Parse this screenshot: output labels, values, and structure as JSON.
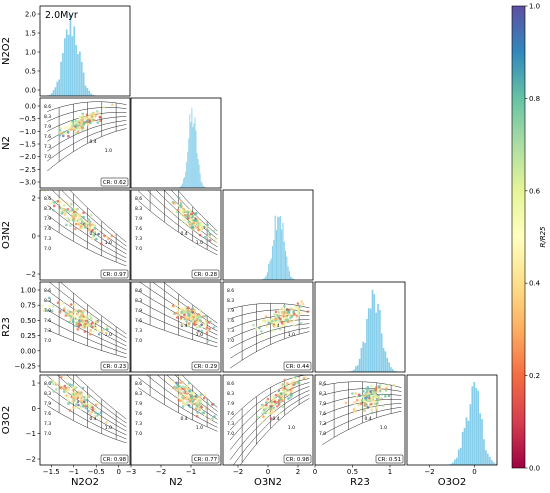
{
  "chart_data": {
    "type": "corner",
    "annotation": "2.0Myr",
    "variables": [
      "N2O2",
      "N2",
      "O3N2",
      "R23",
      "O3O2"
    ],
    "ranges": {
      "N2O2": [
        -1.75,
        0.25
      ],
      "N2": [
        -3.0,
        0.0
      ],
      "O3N2": [
        -3.0,
        3.0
      ],
      "R23": [
        0.0,
        1.2
      ],
      "O3O2": [
        -3.0,
        1.0
      ]
    },
    "ticks": {
      "N2O2": [
        -1.5,
        -1.0,
        -0.5,
        0.0
      ],
      "N2": [
        -3,
        -2,
        -1
      ],
      "O3N2": [
        -2,
        0,
        2
      ],
      "R23": [
        0.0,
        0.5,
        1.0
      ],
      "O3O2": [
        -2,
        0
      ]
    },
    "row_ticks": {
      "N2O2": [
        "0.0",
        "0.5",
        "1.0",
        "1.5",
        "2.0"
      ],
      "N2": [
        "-3.0",
        "-2.5",
        "-2.0",
        "-1.5",
        "-1.0",
        "-0.5",
        "0.0"
      ],
      "O3N2": [
        "-2",
        "0",
        "2"
      ],
      "R23": [
        "-0.25",
        "0.00",
        "0.25",
        "0.50",
        "0.75",
        "1.00"
      ],
      "O3O2": [
        "-2",
        "-1",
        "0",
        "1"
      ]
    },
    "histograms": [
      {
        "variable": "N2O2",
        "center": -1.05,
        "sigma": 0.17,
        "peak": 2.05
      },
      {
        "variable": "N2",
        "center": -0.95,
        "sigma": 0.14
      },
      {
        "variable": "O3N2",
        "center": 0.7,
        "sigma": 0.35
      },
      {
        "variable": "R23",
        "center": 0.78,
        "sigma": 0.1
      },
      {
        "variable": "O3O2",
        "center": -0.05,
        "sigma": 0.35
      }
    ],
    "correlation_ratios": [
      {
        "row": "N2",
        "col": "N2O2",
        "label": "CR: 0.62"
      },
      {
        "row": "O3N2",
        "col": "N2O2",
        "label": "CR: 0.97"
      },
      {
        "row": "O3N2",
        "col": "N2",
        "label": "CR: 0.28"
      },
      {
        "row": "R23",
        "col": "N2O2",
        "label": "CR: 0.23"
      },
      {
        "row": "R23",
        "col": "N2",
        "label": "CR: 0.29"
      },
      {
        "row": "R23",
        "col": "O3N2",
        "label": "CR: 0.44"
      },
      {
        "row": "O3O2",
        "col": "N2O2",
        "label": "CR: 0.98"
      },
      {
        "row": "O3O2",
        "col": "N2",
        "label": "CR: 0.77"
      },
      {
        "row": "O3O2",
        "col": "O3N2",
        "label": "CR: 0.98"
      },
      {
        "row": "O3O2",
        "col": "R23",
        "label": "CR: 0.51"
      }
    ],
    "grid_labels": [
      "8.6",
      "8.3",
      "7.9",
      "7.6",
      "7.3",
      "7.0",
      "0.05",
      "0.2",
      "0.4",
      "1.0",
      "2.0"
    ],
    "scatter": [
      {
        "row": "N2",
        "col": "N2O2",
        "x_center": -0.85,
        "y_center": -0.85,
        "sx": 0.22,
        "sy": 0.18,
        "slope": 0.8
      },
      {
        "row": "O3N2",
        "col": "N2O2",
        "x_center": -0.9,
        "y_center": 1.0,
        "sx": 0.25,
        "sy": 0.55,
        "slope": -2.4
      },
      {
        "row": "O3N2",
        "col": "N2",
        "x_center": -1.0,
        "y_center": 1.1,
        "sx": 0.3,
        "sy": 0.55,
        "slope": -1.8
      },
      {
        "row": "R23",
        "col": "N2O2",
        "x_center": -0.85,
        "y_center": 0.7,
        "sx": 0.25,
        "sy": 0.12,
        "slope": -0.35
      },
      {
        "row": "R23",
        "col": "N2",
        "x_center": -0.95,
        "y_center": 0.72,
        "sx": 0.3,
        "sy": 0.12,
        "slope": -0.2
      },
      {
        "row": "R23",
        "col": "O3N2",
        "x_center": 0.9,
        "y_center": 0.72,
        "sx": 0.7,
        "sy": 0.12,
        "slope": 0.08
      },
      {
        "row": "O3O2",
        "col": "N2O2",
        "x_center": -0.95,
        "y_center": 0.0,
        "sx": 0.25,
        "sy": 0.45,
        "slope": -1.5
      },
      {
        "row": "O3O2",
        "col": "N2",
        "x_center": -1.0,
        "y_center": 0.0,
        "sx": 0.3,
        "sy": 0.45,
        "slope": -1.0
      },
      {
        "row": "O3O2",
        "col": "O3N2",
        "x_center": 0.8,
        "y_center": 0.0,
        "sx": 0.7,
        "sy": 0.45,
        "slope": 0.7
      },
      {
        "row": "O3O2",
        "col": "R23",
        "x_center": 0.75,
        "y_center": 0.0,
        "sx": 0.12,
        "sy": 0.45,
        "slope": 1.2
      }
    ],
    "colorbar": {
      "label": "R/R25",
      "range": [
        0.0,
        1.0
      ],
      "ticks": [
        "0.0",
        "0.2",
        "0.4",
        "0.6",
        "0.8",
        "1.0"
      ],
      "colormap": [
        "#9e0142",
        "#d53e4f",
        "#f46d43",
        "#fdae61",
        "#fee08b",
        "#ffffbf",
        "#e6f598",
        "#abdda4",
        "#66c2a5",
        "#3288bd",
        "#5e4fa2"
      ]
    },
    "hist_color": "#87ceeb",
    "grid_color": "#222222"
  }
}
